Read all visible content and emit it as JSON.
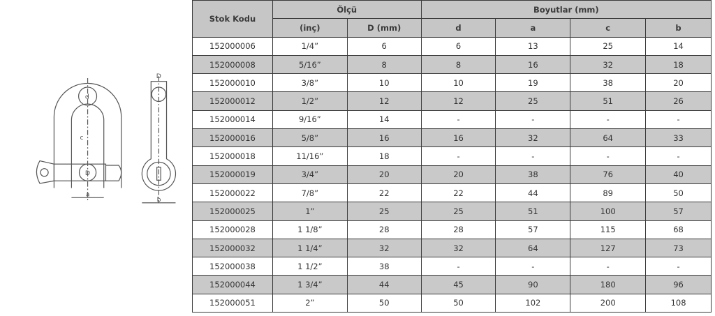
{
  "header": {
    "stock_code": "Stok Kodu",
    "measure": "Ölçü",
    "dimensions": "Boyutlar (mm)",
    "sub": [
      "(inç)",
      "D (mm)",
      "d",
      "a",
      "c",
      "b"
    ]
  },
  "drawing": {
    "labels": [
      "d",
      "c",
      "D",
      "a",
      "D",
      "b"
    ]
  },
  "rows": [
    [
      "152000006",
      "1/4”",
      "6",
      "6",
      "13",
      "25",
      "14"
    ],
    [
      "152000008",
      "5/16”",
      "8",
      "8",
      "16",
      "32",
      "18"
    ],
    [
      "152000010",
      "3/8”",
      "10",
      "10",
      "19",
      "38",
      "20"
    ],
    [
      "152000012",
      "1/2”",
      "12",
      "12",
      "25",
      "51",
      "26"
    ],
    [
      "152000014",
      "9/16”",
      "14",
      "-",
      "-",
      "-",
      "-"
    ],
    [
      "152000016",
      "5/8”",
      "16",
      "16",
      "32",
      "64",
      "33"
    ],
    [
      "152000018",
      "11/16”",
      "18",
      "-",
      "-",
      "-",
      "-"
    ],
    [
      "152000019",
      "3/4”",
      "20",
      "20",
      "38",
      "76",
      "40"
    ],
    [
      "152000022",
      "7/8”",
      "22",
      "22",
      "44",
      "89",
      "50"
    ],
    [
      "152000025",
      "1”",
      "25",
      "25",
      "51",
      "100",
      "57"
    ],
    [
      "152000028",
      "1 1/8”",
      "28",
      "28",
      "57",
      "115",
      "68"
    ],
    [
      "152000032",
      "1 1/4”",
      "32",
      "32",
      "64",
      "127",
      "73"
    ],
    [
      "152000038",
      "1 1/2”",
      "38",
      "-",
      "-",
      "-",
      "-"
    ],
    [
      "152000044",
      "1 3/4”",
      "44",
      "45",
      "90",
      "180",
      "96"
    ],
    [
      "152000051",
      "2”",
      "50",
      "50",
      "102",
      "200",
      "108"
    ]
  ]
}
